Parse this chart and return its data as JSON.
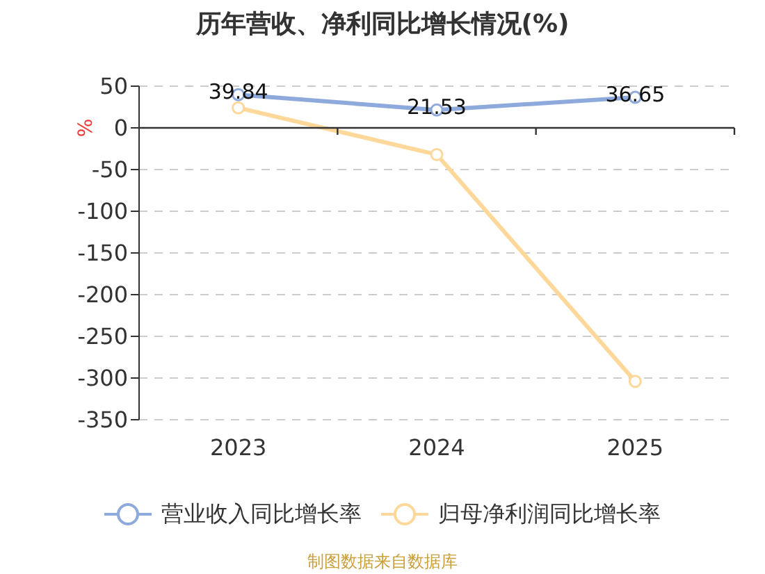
{
  "chart_data": {
    "type": "line",
    "title": "历年营收、净利同比增长情况(%)",
    "ylabel": "%",
    "categories": [
      "2023",
      "2024",
      "2025"
    ],
    "series": [
      {
        "name": "营业收入同比增长率",
        "color": "#8eaadc",
        "values": [
          39.84,
          21.53,
          36.65
        ],
        "value_labels": [
          "39.84",
          "21.53",
          "36.65"
        ]
      },
      {
        "name": "归母净利润同比增长率",
        "color": "#fdd89a",
        "values": [
          24,
          -32,
          -304
        ]
      }
    ],
    "ylim": [
      -350,
      50
    ],
    "yticks": [
      -350,
      -300,
      -250,
      -200,
      -150,
      -100,
      -50,
      0,
      50
    ],
    "grid": "y",
    "legend": "bottom",
    "marker": "circle",
    "line_style": "solid",
    "annotations": [
      "制图数据来自数据库"
    ]
  }
}
